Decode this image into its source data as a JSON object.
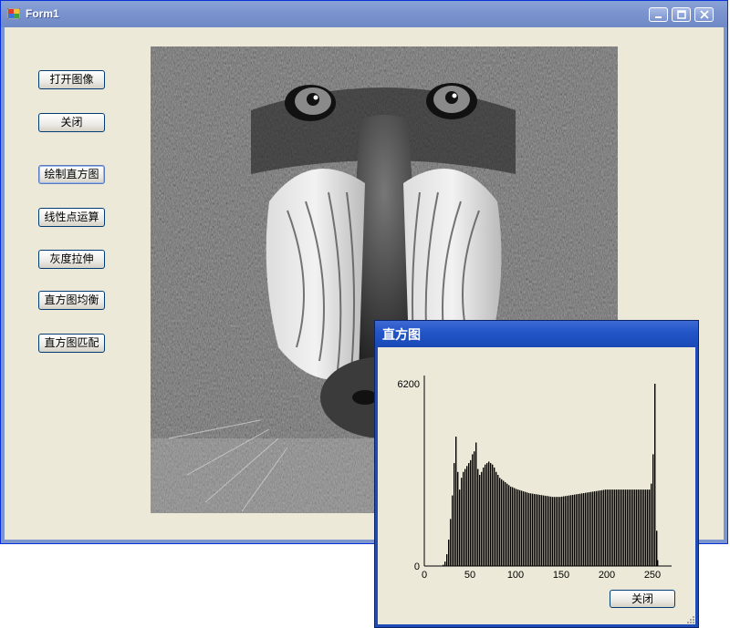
{
  "window": {
    "title": "Form1"
  },
  "buttons": [
    {
      "id": "open",
      "label": "打开图像"
    },
    {
      "id": "close",
      "label": "关闭"
    },
    {
      "id": "draw_hist",
      "label": "绘制直方图"
    },
    {
      "id": "linear",
      "label": "线性点运算"
    },
    {
      "id": "stretch",
      "label": "灰度拉伸"
    },
    {
      "id": "equalize",
      "label": "直方图均衡"
    },
    {
      "id": "match",
      "label": "直方图匹配"
    }
  ],
  "image": {
    "description_icon": "grayscale-image"
  },
  "dialog": {
    "title": "直方图",
    "close_label": "关闭"
  },
  "chart_data": {
    "type": "bar",
    "title": "",
    "xlabel": "",
    "ylabel": "",
    "xlim": [
      0,
      270
    ],
    "ylim": [
      0,
      6200
    ],
    "yticks": [
      "0",
      "6200"
    ],
    "xticks": [
      "0",
      "50",
      "100",
      "150",
      "200",
      "250"
    ],
    "x": [
      20,
      22,
      24,
      26,
      28,
      30,
      32,
      34,
      36,
      38,
      40,
      42,
      44,
      46,
      48,
      50,
      52,
      54,
      56,
      58,
      60,
      62,
      64,
      66,
      68,
      70,
      72,
      74,
      76,
      78,
      80,
      82,
      84,
      86,
      88,
      90,
      92,
      94,
      96,
      98,
      100,
      102,
      104,
      106,
      108,
      110,
      112,
      114,
      116,
      118,
      120,
      122,
      124,
      126,
      128,
      130,
      132,
      134,
      136,
      138,
      140,
      142,
      144,
      146,
      148,
      150,
      152,
      154,
      156,
      158,
      160,
      162,
      164,
      166,
      168,
      170,
      172,
      174,
      176,
      178,
      180,
      182,
      184,
      186,
      188,
      190,
      192,
      194,
      196,
      198,
      200,
      202,
      204,
      206,
      208,
      210,
      212,
      214,
      216,
      218,
      220,
      222,
      224,
      226,
      228,
      230,
      232,
      234,
      236,
      238,
      240,
      242,
      244,
      246,
      248,
      250,
      252,
      254,
      255
    ],
    "values": [
      40,
      150,
      400,
      900,
      1600,
      2400,
      3500,
      4400,
      3200,
      2600,
      3000,
      3200,
      3300,
      3400,
      3500,
      3600,
      3800,
      3900,
      4200,
      3300,
      3100,
      3200,
      3350,
      3450,
      3500,
      3550,
      3500,
      3450,
      3350,
      3200,
      3100,
      3000,
      2950,
      2900,
      2850,
      2800,
      2750,
      2700,
      2680,
      2650,
      2620,
      2600,
      2580,
      2560,
      2540,
      2520,
      2500,
      2480,
      2470,
      2460,
      2450,
      2440,
      2430,
      2420,
      2410,
      2400,
      2390,
      2380,
      2370,
      2360,
      2350,
      2350,
      2350,
      2350,
      2350,
      2360,
      2370,
      2380,
      2390,
      2400,
      2410,
      2420,
      2430,
      2440,
      2450,
      2460,
      2470,
      2480,
      2490,
      2500,
      2510,
      2520,
      2530,
      2540,
      2550,
      2560,
      2570,
      2580,
      2590,
      2600,
      2600,
      2600,
      2600,
      2600,
      2600,
      2600,
      2600,
      2600,
      2600,
      2600,
      2600,
      2600,
      2600,
      2600,
      2600,
      2600,
      2600,
      2600,
      2600,
      2600,
      2600,
      2600,
      2600,
      2600,
      2800,
      3800,
      6200,
      1200,
      200
    ]
  }
}
